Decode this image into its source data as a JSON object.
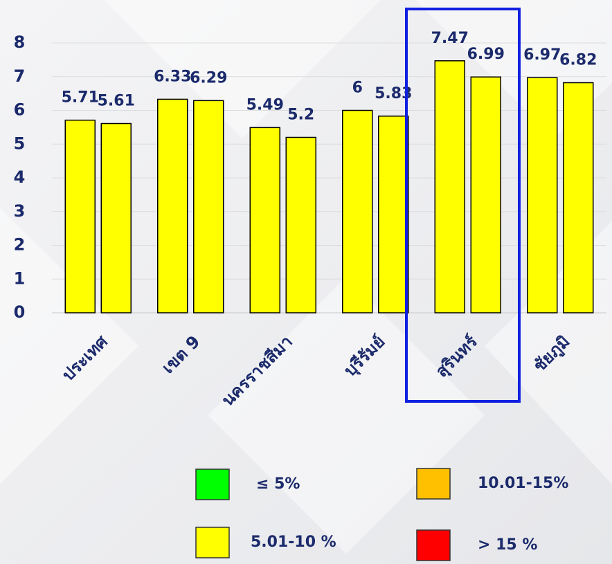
{
  "chart_data": {
    "type": "bar",
    "categories": [
      "ประเทศ",
      "เขต 9",
      "นครราชสีมา",
      "บุรีรัมย์",
      "สุรินทร์",
      "ชัยภูมิ"
    ],
    "series": [
      {
        "color": "#ffff00",
        "values": [
          5.71,
          6.33,
          5.49,
          6,
          7.47,
          6.97
        ]
      },
      {
        "color": "#ffff00",
        "values": [
          5.61,
          6.29,
          5.2,
          5.83,
          6.99,
          6.82
        ]
      }
    ],
    "ylim": [
      0,
      8
    ],
    "yticks": [
      0,
      1,
      2,
      3,
      4,
      5,
      6,
      7,
      8
    ],
    "grid": true,
    "legend": [
      {
        "label": "≤ 5%",
        "color": "#00ff00"
      },
      {
        "label": "5.01-10 %",
        "color": "#ffff00"
      },
      {
        "label": "10.01-15%",
        "color": "#ffc000"
      },
      {
        "label": "> 15 %",
        "color": "#ff0000"
      }
    ]
  }
}
